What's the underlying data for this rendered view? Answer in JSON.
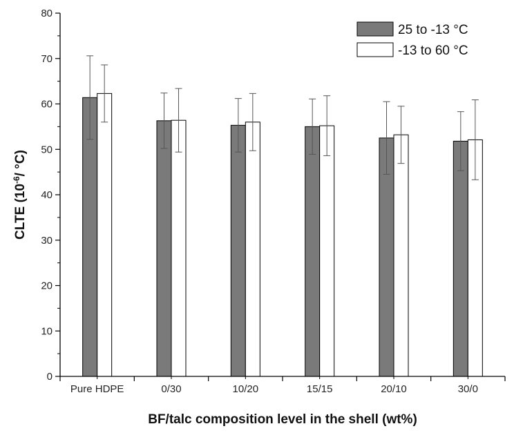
{
  "chart_data": {
    "type": "bar",
    "title": "",
    "xlabel": "BF/talc composition level in the shell (wt%)",
    "ylabel_main": "CLTE (10",
    "ylabel_sup": "-6",
    "ylabel_tail": "/ °C)",
    "ylim": [
      0,
      80
    ],
    "yticks": [
      0,
      10,
      20,
      30,
      40,
      50,
      60,
      70,
      80
    ],
    "categories": [
      "Pure HDPE",
      "0/30",
      "10/20",
      "15/15",
      "20/10",
      "30/0"
    ],
    "series": [
      {
        "name": "25 to -13 °C",
        "color": "#7a7a7a",
        "values": [
          61.4,
          56.3,
          55.3,
          55.0,
          52.5,
          51.8
        ],
        "errors": [
          9.2,
          6.1,
          5.9,
          6.1,
          8.0,
          6.5
        ]
      },
      {
        "name": "-13 to 60 °C",
        "color": "#ffffff",
        "values": [
          62.3,
          56.4,
          56.0,
          55.2,
          53.2,
          52.1
        ],
        "errors": [
          6.3,
          7.0,
          6.3,
          6.6,
          6.3,
          8.8
        ]
      }
    ],
    "legend_position": "top-right",
    "grid": false
  }
}
